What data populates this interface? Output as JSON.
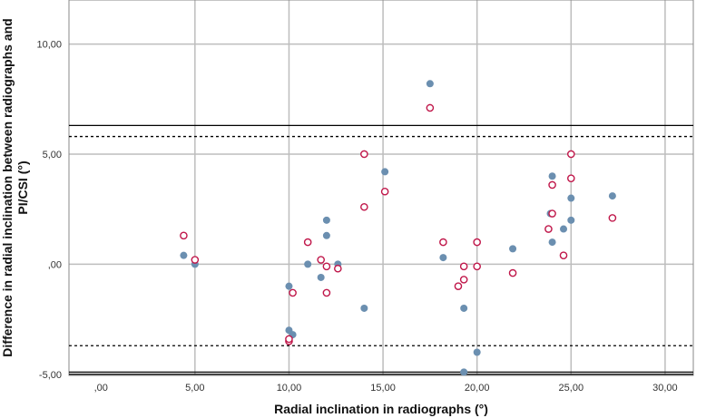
{
  "chart_data": {
    "type": "scatter",
    "title": "",
    "xlabel": "Radial inclination in radiographs (°)",
    "ylabel_lines": [
      "Difference in radial inclination between radiographs and",
      "PI/CSI (°)"
    ],
    "xlim": [
      -1.7,
      31.5
    ],
    "ylim": [
      -5.05,
      12
    ],
    "x_ticks": [
      0,
      5,
      10,
      15,
      20,
      25,
      30
    ],
    "x_tick_labels": [
      ",00",
      "5,00",
      "10,00",
      "15,00",
      "20,00",
      "25,00",
      "30,00"
    ],
    "y_ticks": [
      -5,
      0,
      5,
      10
    ],
    "y_tick_labels": [
      "-5,00",
      ",00",
      "5,00",
      "10,00"
    ],
    "grid": true,
    "reference_lines": [
      {
        "style": "solid",
        "y": 6.3
      },
      {
        "style": "dashed",
        "y": 5.8
      },
      {
        "style": "dashed",
        "y": -3.7
      },
      {
        "style": "solid",
        "y": -4.9
      },
      {
        "style": "solid",
        "y": -5.0
      }
    ],
    "series": [
      {
        "marker": "filled-circle",
        "color": "#6b8fb0",
        "points": [
          {
            "x": 4.4,
            "y": 0.4
          },
          {
            "x": 5.0,
            "y": 0.0
          },
          {
            "x": 10.0,
            "y": -1.0
          },
          {
            "x": 10.0,
            "y": -3.0
          },
          {
            "x": 10.2,
            "y": -3.2
          },
          {
            "x": 11.0,
            "y": 0.0
          },
          {
            "x": 11.7,
            "y": -0.6
          },
          {
            "x": 12.0,
            "y": 2.0
          },
          {
            "x": 12.0,
            "y": 1.3
          },
          {
            "x": 12.6,
            "y": 0.0
          },
          {
            "x": 14.0,
            "y": -2.0
          },
          {
            "x": 15.1,
            "y": 4.2
          },
          {
            "x": 17.5,
            "y": 8.2
          },
          {
            "x": 18.2,
            "y": 0.3
          },
          {
            "x": 19.3,
            "y": -2.0
          },
          {
            "x": 19.3,
            "y": -4.9
          },
          {
            "x": 20.0,
            "y": -4.0
          },
          {
            "x": 21.9,
            "y": 0.7
          },
          {
            "x": 23.9,
            "y": 2.3
          },
          {
            "x": 24.0,
            "y": 4.0
          },
          {
            "x": 24.0,
            "y": 1.0
          },
          {
            "x": 24.6,
            "y": 1.6
          },
          {
            "x": 25.0,
            "y": 3.0
          },
          {
            "x": 25.0,
            "y": 2.0
          },
          {
            "x": 27.2,
            "y": 3.1
          }
        ]
      },
      {
        "marker": "open-circle",
        "color": "#c0174a",
        "points": [
          {
            "x": 4.4,
            "y": 1.3
          },
          {
            "x": 5.0,
            "y": 0.2
          },
          {
            "x": 10.0,
            "y": -3.5
          },
          {
            "x": 10.0,
            "y": -3.4
          },
          {
            "x": 10.2,
            "y": -1.3
          },
          {
            "x": 11.0,
            "y": 1.0
          },
          {
            "x": 11.7,
            "y": 0.2
          },
          {
            "x": 12.0,
            "y": -0.1
          },
          {
            "x": 12.0,
            "y": -1.3
          },
          {
            "x": 12.6,
            "y": -0.2
          },
          {
            "x": 14.0,
            "y": 5.0
          },
          {
            "x": 14.0,
            "y": 2.6
          },
          {
            "x": 15.1,
            "y": 3.3
          },
          {
            "x": 17.5,
            "y": 7.1
          },
          {
            "x": 18.2,
            "y": 1.0
          },
          {
            "x": 19.0,
            "y": -1.0
          },
          {
            "x": 19.3,
            "y": -0.1
          },
          {
            "x": 19.3,
            "y": -0.7
          },
          {
            "x": 20.0,
            "y": 1.0
          },
          {
            "x": 20.0,
            "y": -0.1
          },
          {
            "x": 21.9,
            "y": -0.4
          },
          {
            "x": 23.8,
            "y": 1.6
          },
          {
            "x": 24.0,
            "y": 3.6
          },
          {
            "x": 24.0,
            "y": 2.3
          },
          {
            "x": 24.6,
            "y": 0.4
          },
          {
            "x": 25.0,
            "y": 5.0
          },
          {
            "x": 25.0,
            "y": 3.9
          },
          {
            "x": 27.2,
            "y": 2.1
          }
        ]
      }
    ]
  }
}
